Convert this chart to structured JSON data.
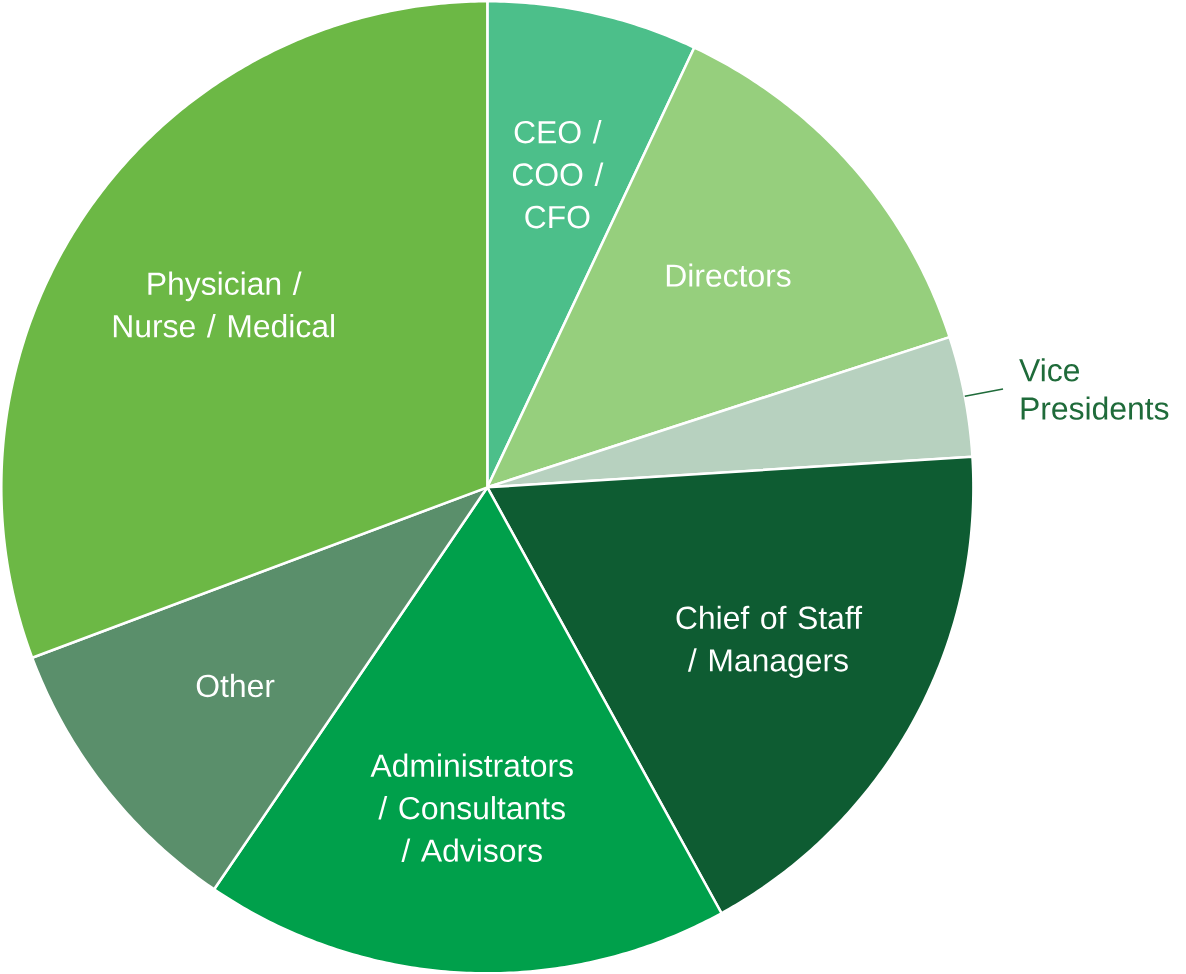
{
  "chart_data": {
    "type": "pie",
    "categories": [
      "CEO / COO / CFO",
      "Directors",
      "Vice Presidents",
      "Chief of Staff / Managers",
      "Administrators / Consultants / Advisors",
      "Other",
      "Physician / Nurse / Medical"
    ],
    "values": [
      7,
      13,
      4,
      18,
      17.5,
      9.8,
      30.7
    ],
    "colors": [
      "#4cbf8a",
      "#96cf7d",
      "#b7d1bf",
      "#0e5c32",
      "#00a04b",
      "#5a8f6b",
      "#6cb845"
    ]
  }
}
